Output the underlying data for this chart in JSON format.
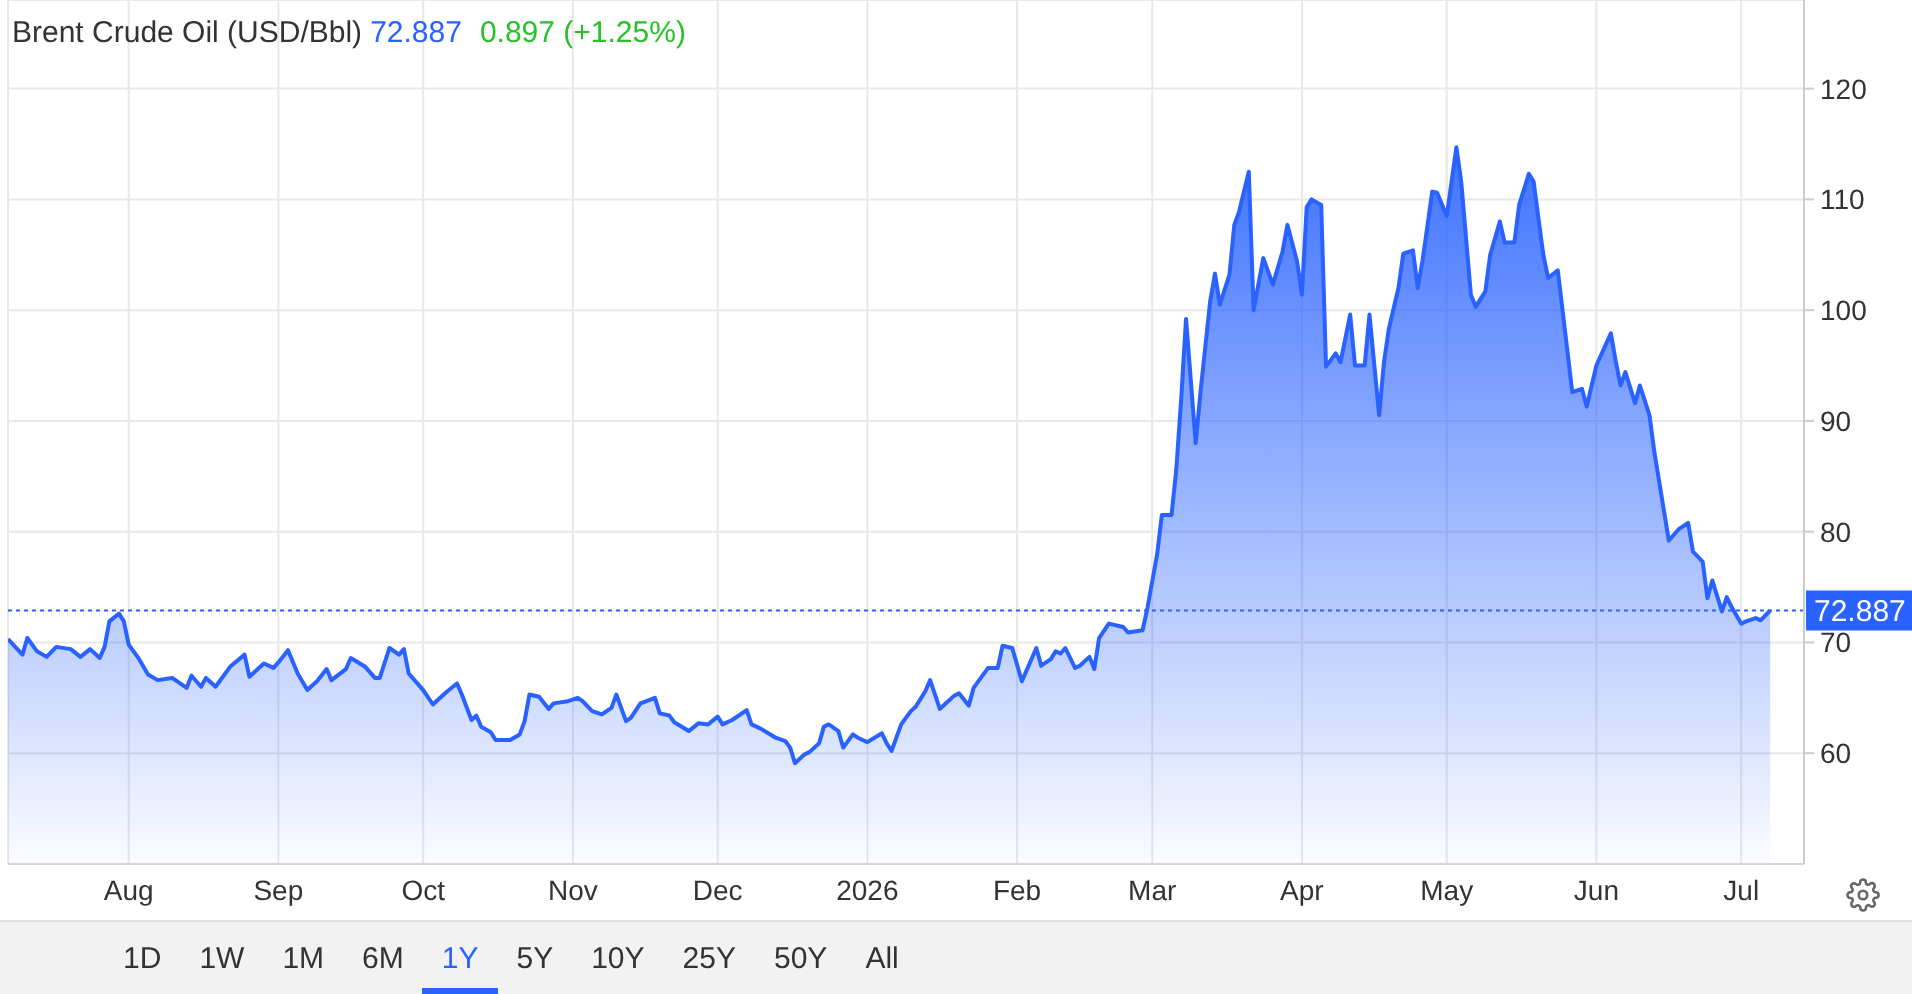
{
  "chart_data": {
    "type": "area",
    "title": "Brent Crude Oil (USD/Bbl)",
    "annotations": [
      "72.887",
      "0.897 (+1.25%)",
      "1D",
      "1W",
      "1M",
      "6M",
      "1Y",
      "5Y",
      "10Y",
      "25Y",
      "50Y",
      "All"
    ],
    "x": [
      "2025-07-07",
      "2025-07-10",
      "2025-07-11",
      "2025-07-13",
      "2025-07-15",
      "2025-07-17",
      "2025-07-20",
      "2025-07-22",
      "2025-07-24",
      "2025-07-26",
      "2025-07-27",
      "2025-07-28",
      "2025-07-30",
      "2025-07-31",
      "2025-08-01",
      "2025-08-03",
      "2025-08-05",
      "2025-08-07",
      "2025-08-10",
      "2025-08-13",
      "2025-08-14",
      "2025-08-16",
      "2025-08-17",
      "2025-08-19",
      "2025-08-22",
      "2025-08-25",
      "2025-08-26",
      "2025-08-29",
      "2025-08-31",
      "2025-09-01",
      "2025-09-03",
      "2025-09-05",
      "2025-09-07",
      "2025-09-09",
      "2025-09-11",
      "2025-09-12",
      "2025-09-15",
      "2025-09-16",
      "2025-09-19",
      "2025-09-21",
      "2025-09-22",
      "2025-09-24",
      "2025-09-26",
      "2025-09-27",
      "2025-09-28",
      "2025-10-01",
      "2025-10-03",
      "2025-10-04",
      "2025-10-06",
      "2025-10-08",
      "2025-10-09",
      "2025-10-11",
      "2025-10-12",
      "2025-10-13",
      "2025-10-15",
      "2025-10-16",
      "2025-10-19",
      "2025-10-21",
      "2025-10-22",
      "2025-10-23",
      "2025-10-25",
      "2025-10-27",
      "2025-10-28",
      "2025-10-31",
      "2025-11-02",
      "2025-11-03",
      "2025-11-05",
      "2025-11-07",
      "2025-11-09",
      "2025-11-10",
      "2025-11-12",
      "2025-11-13",
      "2025-11-15",
      "2025-11-18",
      "2025-11-19",
      "2025-11-21",
      "2025-11-22",
      "2025-11-25",
      "2025-11-27",
      "2025-11-29",
      "2025-12-01",
      "2025-12-02",
      "2025-12-04",
      "2025-12-07",
      "2025-12-08",
      "2025-12-10",
      "2025-12-13",
      "2025-12-15",
      "2025-12-16",
      "2025-12-17",
      "2025-12-19",
      "2025-12-20",
      "2025-12-22",
      "2025-12-23",
      "2025-12-24",
      "2025-12-26",
      "2025-12-27",
      "2025-12-29",
      "2025-12-30",
      "2026-01-01",
      "2026-01-04",
      "2026-01-05",
      "2026-01-06",
      "2026-01-08",
      "2026-01-10",
      "2026-01-11",
      "2026-01-13",
      "2026-01-14",
      "2026-01-16",
      "2026-01-17",
      "2026-01-19",
      "2026-01-20",
      "2026-01-22",
      "2026-01-23",
      "2026-01-26",
      "2026-01-28",
      "2026-01-29",
      "2026-01-31",
      "2026-02-02",
      "2026-02-03",
      "2026-02-05",
      "2026-02-06",
      "2026-02-08",
      "2026-02-09",
      "2026-02-10",
      "2026-02-11",
      "2026-02-13",
      "2026-02-14",
      "2026-02-16",
      "2026-02-17",
      "2026-02-18",
      "2026-02-20",
      "2026-02-23",
      "2026-02-24",
      "2026-02-27",
      "2026-02-28",
      "2026-03-02",
      "2026-03-03",
      "2026-03-05",
      "2026-03-06",
      "2026-03-07",
      "2026-03-08",
      "2026-03-10",
      "2026-03-11",
      "2026-03-13",
      "2026-03-14",
      "2026-03-15",
      "2026-03-17",
      "2026-03-18",
      "2026-03-19",
      "2026-03-21",
      "2026-03-22",
      "2026-03-24",
      "2026-03-26",
      "2026-03-28",
      "2026-03-29",
      "2026-03-31",
      "2026-04-01",
      "2026-04-02",
      "2026-04-03",
      "2026-04-05",
      "2026-04-06",
      "2026-04-08",
      "2026-04-09",
      "2026-04-11",
      "2026-04-12",
      "2026-04-14",
      "2026-04-15",
      "2026-04-17",
      "2026-04-18",
      "2026-04-19",
      "2026-04-21",
      "2026-04-22",
      "2026-04-24",
      "2026-04-25",
      "2026-04-26",
      "2026-04-28",
      "2026-04-29",
      "2026-05-01",
      "2026-05-03",
      "2026-05-04",
      "2026-05-06",
      "2026-05-07",
      "2026-05-09",
      "2026-05-10",
      "2026-05-12",
      "2026-05-13",
      "2026-05-15",
      "2026-05-16",
      "2026-05-18",
      "2026-05-19",
      "2026-05-21",
      "2026-05-22",
      "2026-05-24",
      "2026-05-26",
      "2026-05-27",
      "2026-05-29",
      "2026-05-30",
      "2026-06-01",
      "2026-06-02",
      "2026-06-04",
      "2026-06-05",
      "2026-06-06",
      "2026-06-07",
      "2026-06-09",
      "2026-06-10",
      "2026-06-12",
      "2026-06-13",
      "2026-06-16",
      "2026-06-18",
      "2026-06-20",
      "2026-06-21",
      "2026-06-23",
      "2026-06-24",
      "2026-06-25",
      "2026-06-27",
      "2026-06-28",
      "2026-06-29",
      "2026-07-01",
      "2026-07-02",
      "2026-07-04",
      "2026-07-05",
      "2026-07-07"
    ],
    "values": [
      70.3,
      68.9,
      70.4,
      69.2,
      68.7,
      69.6,
      69.4,
      68.7,
      69.4,
      68.6,
      69.6,
      71.9,
      72.6,
      71.9,
      69.8,
      68.6,
      67.1,
      66.6,
      66.8,
      65.9,
      67.0,
      66.0,
      66.8,
      66.0,
      67.8,
      68.9,
      66.9,
      68.1,
      67.7,
      68.2,
      69.3,
      67.2,
      65.7,
      66.5,
      67.6,
      66.6,
      67.6,
      68.6,
      67.8,
      66.8,
      66.8,
      69.5,
      68.9,
      69.4,
      67.2,
      65.7,
      64.4,
      64.8,
      65.6,
      66.3,
      65.3,
      63.0,
      63.4,
      62.4,
      61.9,
      61.2,
      61.2,
      61.7,
      62.9,
      65.3,
      65.1,
      64.0,
      64.5,
      64.7,
      65.0,
      64.7,
      63.8,
      63.5,
      64.1,
      65.3,
      62.9,
      63.2,
      64.5,
      65.0,
      63.6,
      63.4,
      62.8,
      62.0,
      62.7,
      62.6,
      63.3,
      62.6,
      63.0,
      63.9,
      62.6,
      62.2,
      61.4,
      61.1,
      60.5,
      59.1,
      59.9,
      60.1,
      60.9,
      62.4,
      62.6,
      62.0,
      60.5,
      61.7,
      61.4,
      61.0,
      61.8,
      60.9,
      60.2,
      62.6,
      63.8,
      64.2,
      65.6,
      66.6,
      64.0,
      64.4,
      65.2,
      65.4,
      64.3,
      65.9,
      67.7,
      67.7,
      69.7,
      69.5,
      66.5,
      67.5,
      69.5,
      67.9,
      68.5,
      69.2,
      69.0,
      69.5,
      67.7,
      67.9,
      68.7,
      67.6,
      70.4,
      71.7,
      71.4,
      70.9,
      71.1,
      73.1,
      77.9,
      81.5,
      81.5,
      85.7,
      92.0,
      99.2,
      88.0,
      92.6,
      100.8,
      103.3,
      100.5,
      103.2,
      107.7,
      108.9,
      112.5,
      100.0,
      104.7,
      102.3,
      105.3,
      107.7,
      104.4,
      101.4,
      109.3,
      110.0,
      109.5,
      94.9,
      96.1,
      95.3,
      99.6,
      95.0,
      95.0,
      99.6,
      90.5,
      95.3,
      98.3,
      102.0,
      105.1,
      105.4,
      102.0,
      104.5,
      110.7,
      110.6,
      108.5,
      114.7,
      111.6,
      101.4,
      100.3,
      101.7,
      105.0,
      108.0,
      106.1,
      106.1,
      109.5,
      112.3,
      111.6,
      105.0,
      102.9,
      103.6,
      96.3,
      92.6,
      92.9,
      91.3,
      95.0,
      96.0,
      97.9,
      95.4,
      93.2,
      94.4,
      91.6,
      93.2,
      90.5,
      87.2,
      79.2,
      80.2,
      80.8,
      78.2,
      77.3,
      74.0,
      75.6,
      72.8,
      74.1,
      73.2,
      71.7,
      71.9,
      72.2,
      72.0,
      72.887
    ],
    "color": "#2962ff",
    "xlim": [
      "2025-07-07",
      "2026-07-14"
    ],
    "xticks": [
      {
        "value": "2025-08-01",
        "label": "Aug"
      },
      {
        "value": "2025-09-01",
        "label": "Sep"
      },
      {
        "value": "2025-10-01",
        "label": "Oct"
      },
      {
        "value": "2025-11-01",
        "label": "Nov"
      },
      {
        "value": "2025-12-01",
        "label": "Dec"
      },
      {
        "value": "2026-01-01",
        "label": "2026"
      },
      {
        "value": "2026-02-01",
        "label": "Feb"
      },
      {
        "value": "2026-03-01",
        "label": "Mar"
      },
      {
        "value": "2026-04-01",
        "label": "Apr"
      },
      {
        "value": "2026-05-01",
        "label": "May"
      },
      {
        "value": "2026-06-01",
        "label": "Jun"
      },
      {
        "value": "2026-07-01",
        "label": "Jul"
      }
    ],
    "ylim": [
      50,
      128
    ],
    "yticks": [
      60,
      70,
      80,
      90,
      100,
      110,
      120
    ],
    "grid": true,
    "ref_lines": [
      {
        "axis": "y",
        "value": 72.887,
        "label": "72.887",
        "color": "#2962ff",
        "line_style": "dotted"
      }
    ]
  }
}
